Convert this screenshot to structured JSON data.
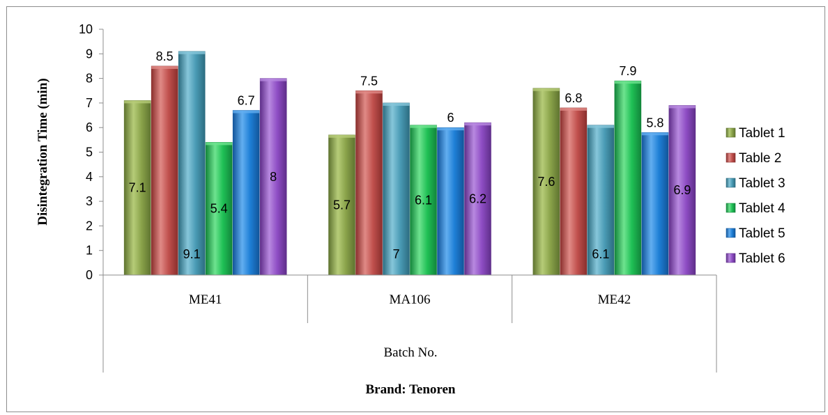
{
  "chart_data": {
    "type": "bar",
    "categories": [
      "ME41",
      "MA106",
      "ME42"
    ],
    "series": [
      {
        "name": "Tablet 1",
        "values": [
          7.1,
          5.7,
          7.6
        ],
        "labels": [
          "7.1",
          "5.7",
          "7.6"
        ],
        "color": "#8aa34a",
        "dark": "#5f7430",
        "light": "#b6cc78"
      },
      {
        "name": "Table 2",
        "values": [
          8.5,
          7.5,
          6.8
        ],
        "labels": [
          "8.5",
          "7.5",
          "6.8"
        ],
        "color": "#c0504d",
        "dark": "#8a2f2d",
        "light": "#e08a86"
      },
      {
        "name": "Tablet 3",
        "values": [
          9.1,
          7.0,
          6.1
        ],
        "labels": [
          "9.1",
          "7",
          "6.1"
        ],
        "color": "#4a9bb5",
        "dark": "#2c6c80",
        "light": "#86c6da"
      },
      {
        "name": "Tablet 4",
        "values": [
          5.4,
          6.1,
          7.9
        ],
        "labels": [
          "5.4",
          "6.1",
          "7.9"
        ],
        "color": "#1fc055",
        "dark": "#12853a",
        "light": "#6ee38f"
      },
      {
        "name": "Tablet 5",
        "values": [
          6.7,
          6.0,
          5.8
        ],
        "labels": [
          "6.7",
          "6",
          "5.8"
        ],
        "color": "#1e7fd6",
        "dark": "#12559a",
        "light": "#62aef0"
      },
      {
        "name": "Tablet 6",
        "values": [
          8.0,
          6.2,
          6.9
        ],
        "labels": [
          "8",
          "6.2",
          "6.9"
        ],
        "color": "#8e4dc4",
        "dark": "#5f2e8a",
        "light": "#b889e0"
      }
    ],
    "ylim": [
      0,
      10
    ],
    "yticks": [
      "0",
      "1",
      "2",
      "3",
      "4",
      "5",
      "6",
      "7",
      "8",
      "9",
      "10"
    ],
    "ylabel": "Disintegration Time (min)",
    "xlabel": "Batch No.",
    "outer_label": "Brand: Tenoren",
    "legend_position": "right"
  }
}
